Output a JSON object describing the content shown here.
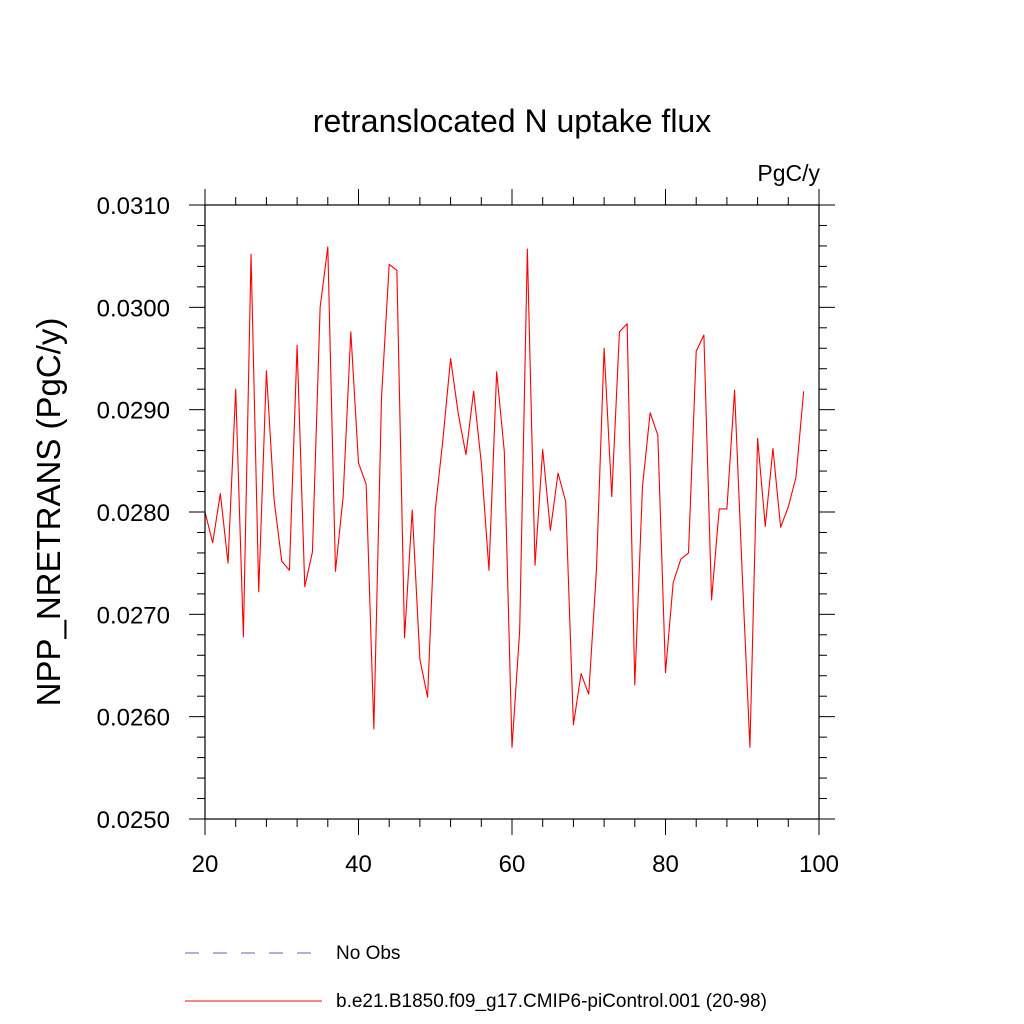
{
  "chart_data": {
    "type": "line",
    "title": "retranslocated N uptake flux",
    "units_label": "PgC/y",
    "ylabel": "NPP_NRETRANS  (PgC/y)",
    "xlabel": "",
    "xlim": [
      20,
      100
    ],
    "ylim": [
      0.025,
      0.031
    ],
    "x_ticks": [
      20,
      40,
      60,
      80,
      100
    ],
    "x_tick_labels": [
      "20",
      "40",
      "60",
      "80",
      "100"
    ],
    "y_ticks": [
      0.025,
      0.026,
      0.027,
      0.028,
      0.029,
      0.03,
      0.031
    ],
    "y_tick_labels": [
      "0.0250",
      "0.0260",
      "0.0270",
      "0.0280",
      "0.0290",
      "0.0300",
      "0.0310"
    ],
    "legend": [
      {
        "label": "No Obs",
        "color": "#6a5acd",
        "dash": true
      },
      {
        "label": "b.e21.B1850.f09_g17.CMIP6-piControl.001 (20-98)",
        "color": "#ff0000",
        "dash": false
      }
    ],
    "series": [
      {
        "name": "b.e21.B1850.f09_g17.CMIP6-piControl.001 (20-98)",
        "color": "#ff0000",
        "x_start": 20,
        "values": [
          0.028,
          0.0277,
          0.02818,
          0.0275,
          0.0292,
          0.02678,
          0.03052,
          0.02722,
          0.02938,
          0.02812,
          0.02752,
          0.02743,
          0.02963,
          0.02727,
          0.02761,
          0.03,
          0.03059,
          0.02742,
          0.02815,
          0.02976,
          0.02848,
          0.02827,
          0.02588,
          0.02912,
          0.03042,
          0.03036,
          0.02677,
          0.02802,
          0.02656,
          0.02619,
          0.02802,
          0.02871,
          0.0295,
          0.02896,
          0.02856,
          0.02918,
          0.02848,
          0.02743,
          0.02937,
          0.02859,
          0.0257,
          0.02684,
          0.03057,
          0.02748,
          0.02861,
          0.02782,
          0.02838,
          0.0281,
          0.02592,
          0.02642,
          0.02622,
          0.02743,
          0.0296,
          0.02815,
          0.02976,
          0.02984,
          0.02631,
          0.02825,
          0.02897,
          0.02875,
          0.02643,
          0.02731,
          0.02754,
          0.0276,
          0.02957,
          0.02973,
          0.02714,
          0.02803,
          0.02803,
          0.02919,
          0.02739,
          0.0257,
          0.02872,
          0.02786,
          0.02862,
          0.02785,
          0.02805,
          0.02834,
          0.02918
        ]
      }
    ]
  }
}
